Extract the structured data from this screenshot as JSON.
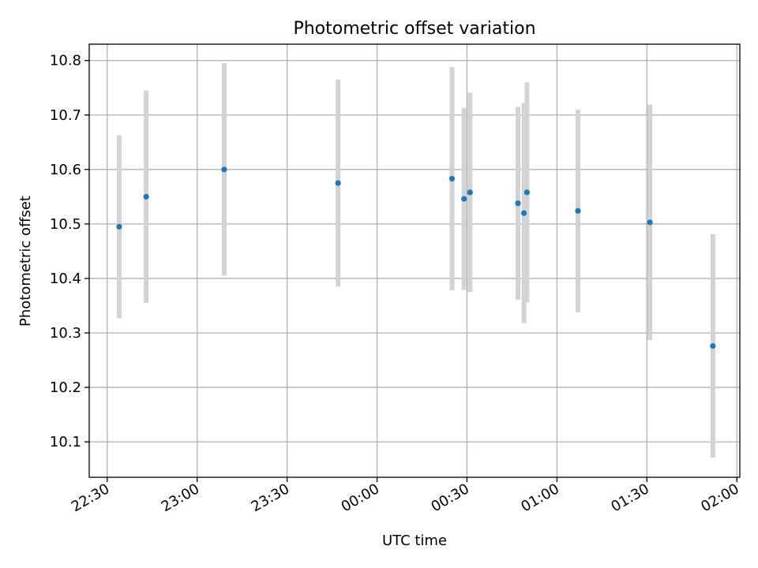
{
  "chart_data": {
    "type": "scatter",
    "title": "Photometric offset variation",
    "xlabel": "UTC time",
    "ylabel": "Photometric offset",
    "x_ticks": [
      "22:30",
      "23:00",
      "23:30",
      "00:00",
      "00:30",
      "01:00",
      "01:30",
      "02:00"
    ],
    "x_tick_minutes": [
      0,
      30,
      60,
      90,
      120,
      150,
      180,
      210
    ],
    "y_ticks": [
      "10.1",
      "10.2",
      "10.3",
      "10.4",
      "10.5",
      "10.6",
      "10.7",
      "10.8"
    ],
    "y_tick_values": [
      10.1,
      10.2,
      10.3,
      10.4,
      10.5,
      10.6,
      10.7,
      10.8
    ],
    "xlim_minutes": [
      -6,
      211
    ],
    "ylim": [
      10.035,
      10.83
    ],
    "grid": true,
    "marker_color": "#1f77b4",
    "errorbar_color": "#d3d3d3",
    "points": [
      {
        "time": "22:34",
        "y": 10.495,
        "err": 0.168
      },
      {
        "time": "22:43",
        "y": 10.55,
        "err": 0.195
      },
      {
        "time": "23:09",
        "y": 10.6,
        "err": 0.195
      },
      {
        "time": "23:47",
        "y": 10.575,
        "err": 0.19
      },
      {
        "time": "00:25",
        "y": 10.583,
        "err": 0.205
      },
      {
        "time": "00:29",
        "y": 10.546,
        "err": 0.167
      },
      {
        "time": "00:31",
        "y": 10.558,
        "err": 0.183
      },
      {
        "time": "00:47",
        "y": 10.538,
        "err": 0.177
      },
      {
        "time": "00:49",
        "y": 10.52,
        "err": 0.202
      },
      {
        "time": "00:50",
        "y": 10.558,
        "err": 0.202
      },
      {
        "time": "01:07",
        "y": 10.524,
        "err": 0.186
      },
      {
        "time": "01:31",
        "y": 10.503,
        "err": 0.216
      },
      {
        "time": "01:52",
        "y": 10.276,
        "err": 0.205
      }
    ]
  }
}
